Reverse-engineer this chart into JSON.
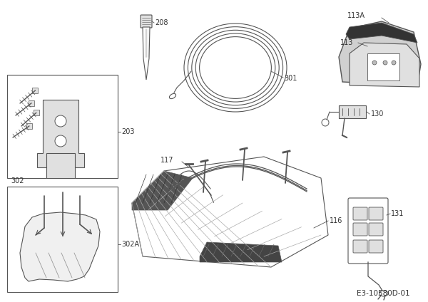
{
  "bg_color": "#ffffff",
  "fig_width": 6.0,
  "fig_height": 4.24,
  "dpi": 100,
  "line_color": "#555555",
  "label_color": "#333333",
  "font_size": 7.0,
  "footer_text": "E3-10580D-01",
  "lw": 0.8
}
